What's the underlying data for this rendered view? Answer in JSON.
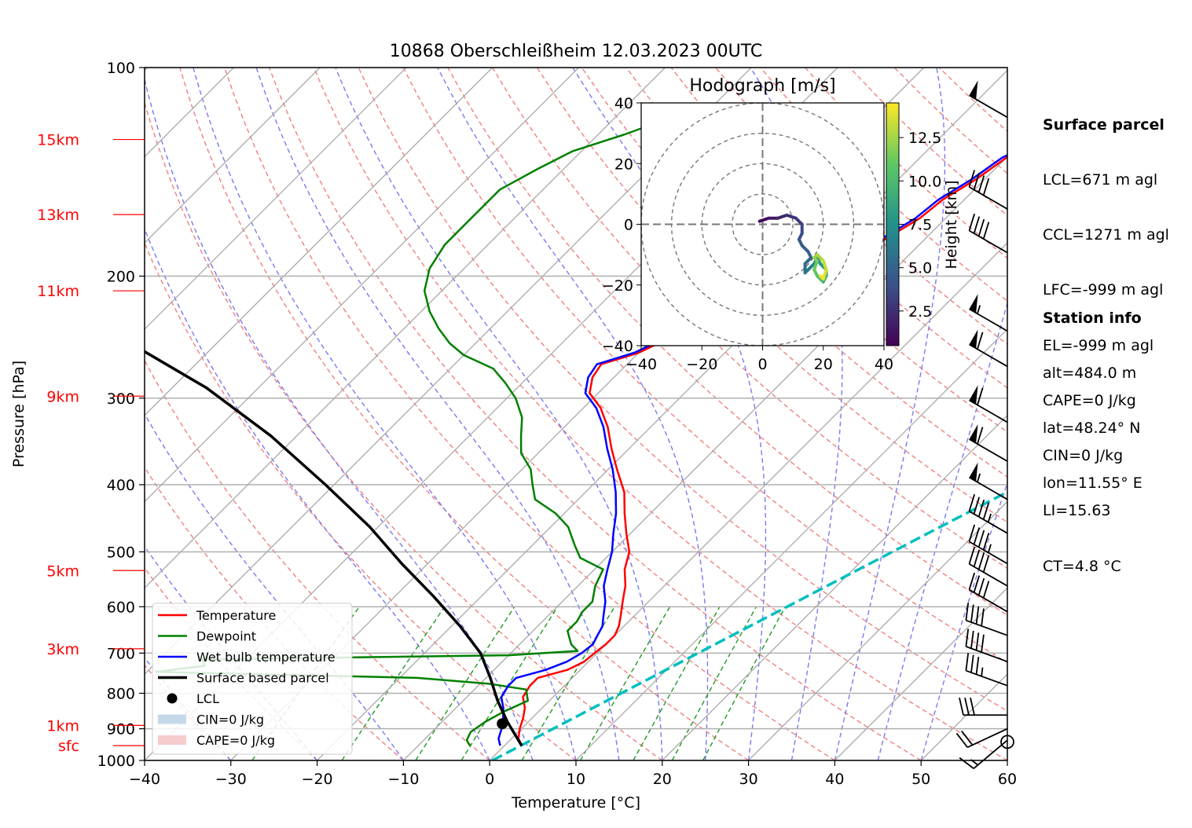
{
  "chart_data": {
    "type": "skew-t",
    "title": "10868 Oberschleißheim 12.03.2023 00UTC",
    "xlabel": "Temperature [°C]",
    "ylabel": "Pressure [hPa]",
    "xlim": [
      -40,
      60
    ],
    "ylim": [
      1000,
      100
    ],
    "y_scale": "log",
    "grid": true,
    "x_ticks": [
      "−40",
      "−30",
      "−20",
      "−10",
      "0",
      "10",
      "20",
      "30",
      "40",
      "50",
      "60"
    ],
    "x_tick_values": [
      -40,
      -30,
      -20,
      -10,
      0,
      10,
      20,
      30,
      40,
      50,
      60
    ],
    "p_ticks": [
      100,
      200,
      300,
      400,
      500,
      600,
      700,
      800,
      900,
      1000
    ],
    "height_labels": [
      {
        "label": "15km",
        "p": 127
      },
      {
        "label": "13km",
        "p": 163
      },
      {
        "label": "11km",
        "p": 210
      },
      {
        "label": "9km",
        "p": 298
      },
      {
        "label": "5km",
        "p": 532
      },
      {
        "label": "3km",
        "p": 690
      },
      {
        "label": "1km",
        "p": 890
      },
      {
        "label": "sfc",
        "p": 952
      }
    ],
    "series": [
      {
        "name": "Temperature",
        "color": "#ff0000",
        "points": [
          [
            2,
            952
          ],
          [
            0.8,
            930
          ],
          [
            -0.2,
            900
          ],
          [
            -1.0,
            870
          ],
          [
            -2.0,
            840
          ],
          [
            -3.5,
            810
          ],
          [
            -4.0,
            780
          ],
          [
            -4.0,
            760
          ],
          [
            -1.5,
            740
          ],
          [
            -0.5,
            720
          ],
          [
            -0.3,
            700
          ],
          [
            0.0,
            680
          ],
          [
            0.0,
            660
          ],
          [
            -0.6,
            640
          ],
          [
            -1.5,
            620
          ],
          [
            -3.0,
            590
          ],
          [
            -4.5,
            560
          ],
          [
            -6.5,
            530
          ],
          [
            -8.0,
            500
          ],
          [
            -10.5,
            470
          ],
          [
            -13,
            440
          ],
          [
            -15.5,
            410
          ],
          [
            -19,
            380
          ],
          [
            -22,
            355
          ],
          [
            -25,
            330
          ],
          [
            -28,
            310
          ],
          [
            -31,
            295
          ],
          [
            -32.5,
            280
          ],
          [
            -33,
            268
          ],
          [
            -30,
            258
          ],
          [
            -28,
            245
          ],
          [
            -26,
            232
          ],
          [
            -22.5,
            222
          ],
          [
            -20,
            210
          ],
          [
            -17.5,
            195
          ],
          [
            -15,
            180
          ],
          [
            -13,
            165
          ],
          [
            -12.5,
            155
          ],
          [
            -11,
            145
          ],
          [
            -10,
            135
          ],
          [
            -7.5,
            125
          ],
          [
            -6.5,
            121
          ]
        ]
      },
      {
        "name": "Dewpoint",
        "color": "#008000",
        "points": [
          [
            -4,
            952
          ],
          [
            -5,
            935
          ],
          [
            -5.5,
            910
          ],
          [
            -5,
            880
          ],
          [
            -4,
            850
          ],
          [
            -2.5,
            820
          ],
          [
            -4,
            790
          ],
          [
            -9,
            775
          ],
          [
            -18,
            760
          ],
          [
            -49,
            745
          ],
          [
            -44,
            730
          ],
          [
            -45,
            715
          ],
          [
            -10,
            705
          ],
          [
            -2.5,
            695
          ],
          [
            -4,
            680
          ],
          [
            -5,
            665
          ],
          [
            -6,
            650
          ],
          [
            -6,
            630
          ],
          [
            -6.5,
            610
          ],
          [
            -6.5,
            590
          ],
          [
            -8,
            560
          ],
          [
            -9,
            530
          ],
          [
            -13,
            510
          ],
          [
            -15,
            490
          ],
          [
            -18,
            460
          ],
          [
            -21,
            440
          ],
          [
            -25,
            420
          ],
          [
            -27,
            400
          ],
          [
            -29,
            380
          ],
          [
            -32,
            360
          ],
          [
            -34,
            340
          ],
          [
            -36,
            320
          ],
          [
            -39,
            300
          ],
          [
            -42,
            285
          ],
          [
            -45,
            272
          ],
          [
            -50,
            260
          ],
          [
            -53,
            250
          ],
          [
            -56,
            238
          ],
          [
            -59,
            225
          ],
          [
            -62,
            210
          ],
          [
            -64,
            195
          ],
          [
            -65,
            180
          ],
          [
            -65,
            165
          ],
          [
            -65,
            150
          ],
          [
            -63,
            140
          ],
          [
            -61,
            132
          ],
          [
            -57,
            125
          ],
          [
            -55,
            121
          ]
        ]
      },
      {
        "name": "Wet bulb temperature",
        "color": "#0000ff",
        "points": [
          [
            -0.5,
            952
          ],
          [
            -1.5,
            930
          ],
          [
            -2.3,
            900
          ],
          [
            -3.3,
            870
          ],
          [
            -4.5,
            840
          ],
          [
            -6,
            810
          ],
          [
            -6.5,
            780
          ],
          [
            -6.5,
            760
          ],
          [
            -4,
            740
          ],
          [
            -2.5,
            720
          ],
          [
            -1.8,
            700
          ],
          [
            -1.5,
            680
          ],
          [
            -2,
            660
          ],
          [
            -2.5,
            640
          ],
          [
            -3.5,
            620
          ],
          [
            -5,
            590
          ],
          [
            -7,
            560
          ],
          [
            -8.5,
            530
          ],
          [
            -10,
            500
          ],
          [
            -12,
            470
          ],
          [
            -14,
            440
          ],
          [
            -16.5,
            410
          ],
          [
            -19.5,
            380
          ],
          [
            -22.5,
            355
          ],
          [
            -25.5,
            330
          ],
          [
            -28.5,
            310
          ],
          [
            -31.5,
            295
          ],
          [
            -33,
            280
          ],
          [
            -33.5,
            268
          ],
          [
            -30.5,
            258
          ],
          [
            -28.5,
            245
          ],
          [
            -26.5,
            232
          ],
          [
            -23,
            222
          ],
          [
            -20.5,
            210
          ],
          [
            -18,
            195
          ],
          [
            -15.5,
            180
          ],
          [
            -13.5,
            165
          ],
          [
            -13,
            155
          ],
          [
            -11.5,
            145
          ],
          [
            -10.5,
            135
          ],
          [
            -8,
            125
          ],
          [
            -7,
            121
          ]
        ]
      },
      {
        "name": "Surface based parcel",
        "color": "#000000",
        "points": [
          [
            2,
            952
          ],
          [
            -2.4,
            880
          ],
          [
            -6,
            820
          ],
          [
            -9.5,
            760
          ],
          [
            -13.5,
            700
          ],
          [
            -19,
            640
          ],
          [
            -25.5,
            580
          ],
          [
            -33,
            520
          ],
          [
            -41,
            460
          ],
          [
            -51,
            400
          ],
          [
            -63,
            340
          ],
          [
            -76,
            290
          ],
          [
            -90,
            250
          ],
          [
            -103,
            222
          ]
        ]
      }
    ],
    "lcl": {
      "p": 885,
      "t": -2.8,
      "label": "LCL"
    },
    "legend_entries": [
      "Temperature",
      "Dewpoint",
      "Wet bulb temperature",
      "Surface based parcel",
      "LCL",
      "CIN=0 J/kg",
      "CAPE=0 J/kg"
    ],
    "legend_placement": "lower-left",
    "hodograph": {
      "title": "Hodograph [m/s]",
      "xlim": [
        -40,
        40
      ],
      "ylim": [
        -40,
        40
      ],
      "ticks": [
        "−40",
        "−20",
        "0",
        "20",
        "40"
      ],
      "tick_values": [
        -40,
        -20,
        0,
        20,
        40
      ],
      "colorbar_label": "Height [km]",
      "colorbar_ticks": [
        "2.5",
        "5.0",
        "7.5",
        "10.0",
        "12.5"
      ],
      "colorbar_tick_values": [
        2.5,
        5.0,
        7.5,
        10.0,
        12.5
      ],
      "colorbar_range": [
        0.5,
        14.5
      ],
      "points": [
        [
          -1,
          1,
          0.5
        ],
        [
          2,
          2,
          1.2
        ],
        [
          5,
          2,
          1.8
        ],
        [
          8,
          3,
          2.3
        ],
        [
          11,
          2,
          2.8
        ],
        [
          13,
          0,
          3.3
        ],
        [
          13,
          -3,
          3.7
        ],
        [
          12,
          -5,
          4.0
        ],
        [
          13,
          -7,
          4.4
        ],
        [
          15,
          -9,
          4.8
        ],
        [
          16,
          -11,
          5.1
        ],
        [
          15,
          -12,
          5.3
        ],
        [
          14,
          -13,
          5.5
        ],
        [
          14,
          -16,
          5.9
        ],
        [
          15,
          -15,
          6.2
        ],
        [
          17,
          -13,
          6.7
        ],
        [
          18,
          -11,
          7.2
        ],
        [
          19,
          -13,
          7.6
        ],
        [
          20,
          -14,
          8.0
        ],
        [
          21,
          -15,
          8.5
        ],
        [
          21,
          -17,
          9.0
        ],
        [
          20,
          -19,
          9.5
        ],
        [
          19,
          -18,
          10.0
        ],
        [
          18,
          -17,
          10.5
        ],
        [
          17,
          -15,
          11.0
        ],
        [
          18,
          -12,
          11.5
        ],
        [
          17,
          -11,
          12.0
        ],
        [
          18,
          -10,
          12.5
        ],
        [
          20,
          -12,
          13.0
        ],
        [
          21,
          -15,
          13.6
        ],
        [
          20,
          -18,
          14.0
        ],
        [
          19,
          -17,
          14.4
        ]
      ]
    },
    "cyan_line": {
      "color": "#00bfbf",
      "p_start": 1000,
      "t_start": 0.3,
      "p_end": 155,
      "t_end": 60
    }
  },
  "info": {
    "surface_header": "Surface parcel",
    "lines": [
      "LCL=671 m agl",
      "CCL=1271 m agl",
      "LFC=-999 m agl",
      "EL=-999 m agl",
      "CAPE=0 J/kg",
      "CIN=0 J/kg",
      "LI=15.63",
      "CT=4.8 °C"
    ],
    "station_header": "Station info",
    "station_lines": [
      "alt=484.0 m",
      "lat=48.24° N",
      "lon=11.55° E"
    ]
  },
  "wind_barbs": [
    {
      "p": 955,
      "speed_kt": 0,
      "dir": 0,
      "calm": true
    },
    {
      "p": 935,
      "speed_kt": 15,
      "dir": 230
    },
    {
      "p": 900,
      "speed_kt": 20,
      "dir": 245
    },
    {
      "p": 860,
      "speed_kt": 30,
      "dir": 270
    },
    {
      "p": 780,
      "speed_kt": 35,
      "dir": 290
    },
    {
      "p": 720,
      "speed_kt": 40,
      "dir": 290
    },
    {
      "p": 660,
      "speed_kt": 40,
      "dir": 290
    },
    {
      "p": 610,
      "speed_kt": 40,
      "dir": 300
    },
    {
      "p": 560,
      "speed_kt": 40,
      "dir": 300
    },
    {
      "p": 520,
      "speed_kt": 45,
      "dir": 300
    },
    {
      "p": 470,
      "speed_kt": 45,
      "dir": 300
    },
    {
      "p": 420,
      "speed_kt": 55,
      "dir": 300
    },
    {
      "p": 370,
      "speed_kt": 60,
      "dir": 300
    },
    {
      "p": 325,
      "speed_kt": 60,
      "dir": 300
    },
    {
      "p": 270,
      "speed_kt": 60,
      "dir": 300
    },
    {
      "p": 240,
      "speed_kt": 55,
      "dir": 300
    },
    {
      "p": 185,
      "speed_kt": 40,
      "dir": 300
    },
    {
      "p": 160,
      "speed_kt": 40,
      "dir": 300
    },
    {
      "p": 118,
      "speed_kt": 50,
      "dir": 300
    }
  ]
}
